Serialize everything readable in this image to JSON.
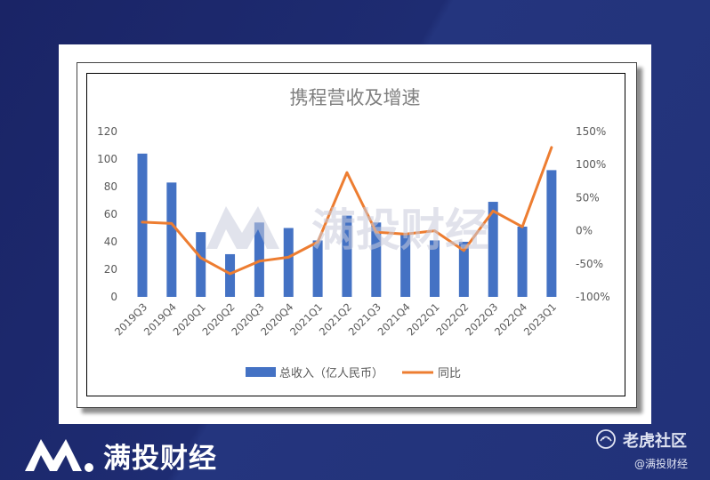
{
  "chart_data": {
    "type": "bar+line",
    "title": "携程营收及增速",
    "categories": [
      "2019Q3",
      "2019Q4",
      "2020Q1",
      "2020Q2",
      "2020Q3",
      "2020Q4",
      "2021Q1",
      "2021Q2",
      "2021Q3",
      "2021Q4",
      "2022Q1",
      "2022Q2",
      "2022Q3",
      "2022Q4",
      "2023Q1"
    ],
    "series": [
      {
        "name": "总收入（亿人民币）",
        "type": "bar",
        "axis": "left",
        "color": "#4472c4",
        "values": [
          104,
          83,
          47,
          31,
          54,
          50,
          41,
          59,
          54,
          46,
          41,
          40,
          69,
          51,
          92
        ]
      },
      {
        "name": "同比",
        "type": "line",
        "axis": "right",
        "color": "#ed7d31",
        "values": [
          13,
          11,
          -41,
          -65,
          -46,
          -40,
          -17,
          88,
          -2,
          -5,
          0,
          -30,
          30,
          6,
          126
        ]
      }
    ],
    "y_left": {
      "ticks": [
        "0",
        "20",
        "40",
        "60",
        "80",
        "100",
        "120"
      ],
      "min": 0,
      "max": 120
    },
    "y_right": {
      "ticks": [
        "-100%",
        "-50%",
        "0%",
        "50%",
        "100%",
        "150%"
      ],
      "min": -100,
      "max": 150
    },
    "legend": "bottom",
    "grid": false
  },
  "watermark": "满投财经",
  "footer": {
    "brand": "满投财经",
    "community": "老虎社区",
    "handle": "@满投财经"
  }
}
